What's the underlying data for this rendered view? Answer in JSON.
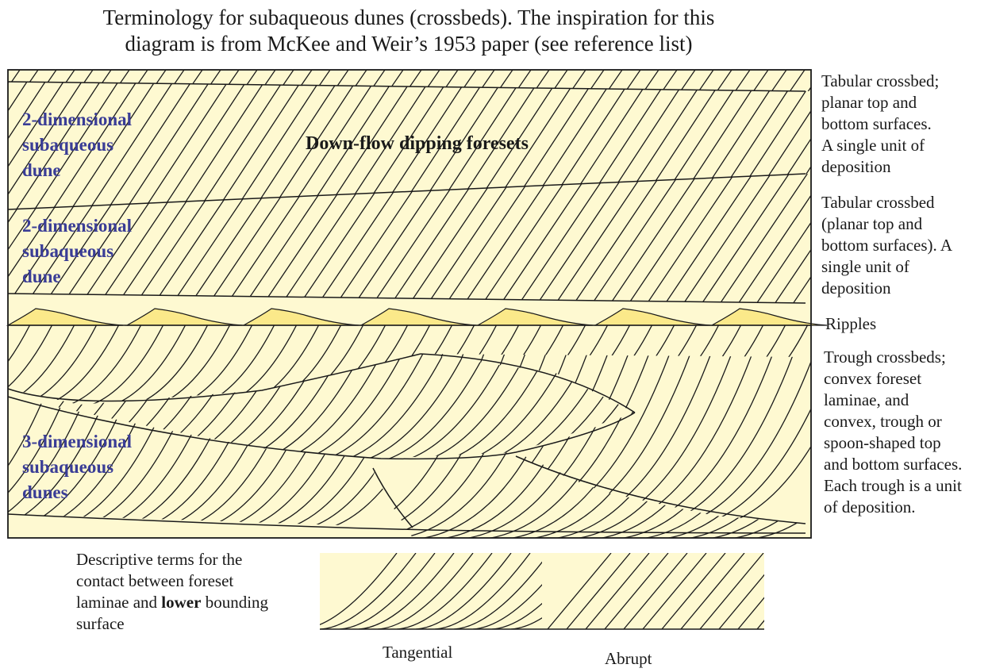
{
  "title": {
    "line1": "Terminology for subaqueous dunes (crossbeds). The inspiration for this",
    "line2": "diagram is from McKee and Weir’s 1953 paper (see reference list)"
  },
  "labels": {
    "dune2d_upper": [
      "2-dimensional",
      "subaqueous",
      "dune"
    ],
    "dune2d_lower": [
      "2-dimensional",
      "subaqueous",
      "dune"
    ],
    "dune3d": [
      "3-dimensional",
      "subaqueous",
      "dunes"
    ],
    "foresets": "Down-flow dipping foresets"
  },
  "side_notes": {
    "tabular_upper": [
      "Tabular crossbed;",
      "planar top and",
      "bottom surfaces.",
      "A single unit of",
      "deposition"
    ],
    "tabular_lower": [
      "Tabular crossbed",
      "(planar top and",
      "bottom surfaces). A",
      "single unit of",
      "deposition"
    ],
    "ripples": "Ripples",
    "trough": [
      "Trough crossbeds;",
      "convex foreset",
      "laminae, and",
      "convex, trough or",
      "spoon-shaped top",
      "and bottom surfaces.",
      "Each trough is a unit",
      "of deposition."
    ]
  },
  "contact_terms": {
    "description_before": "Descriptive terms for the",
    "description_line2": "contact between foreset",
    "description_line3_pre": "laminae and ",
    "description_bold": "lower",
    "description_line3_post": " bounding",
    "description_line4": "surface",
    "tangential": "Tangential",
    "abrupt": "Abrupt"
  },
  "colors": {
    "background_fill": "#fef9d1",
    "ripple_fill": "#fbe98a",
    "label_blue": "#3a3d96",
    "line": "#1a1a1a"
  }
}
